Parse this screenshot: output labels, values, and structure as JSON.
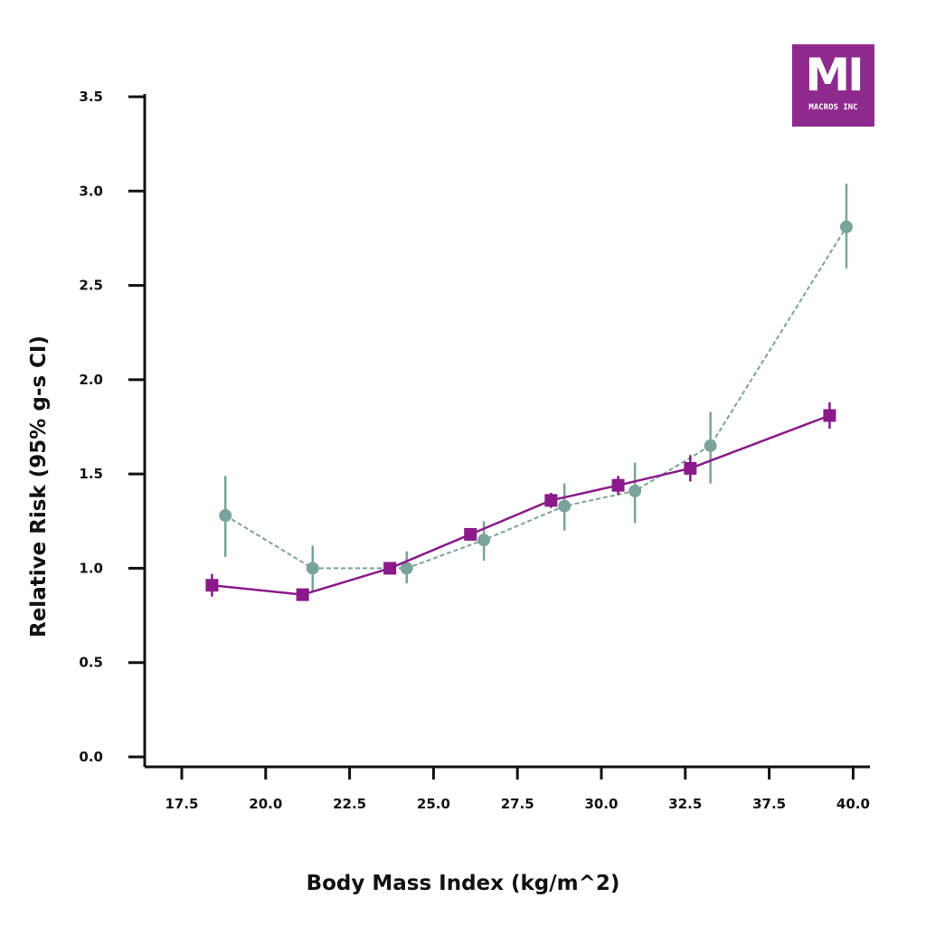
{
  "logo": {
    "mark": "MI",
    "name": "MACROS INC",
    "color": "#8e2a8e"
  },
  "chart_data": {
    "type": "line",
    "xlabel": "Body Mass Index (kg/m^2)",
    "ylabel": "Relative Risk (95% g-s CI)",
    "ylim": [
      0,
      3.5
    ],
    "y_ticks": [
      "0.0",
      "0.5",
      "1.0",
      "1.5",
      "2.0",
      "2.5",
      "3.0",
      "3.5"
    ],
    "x_ticks": [
      "17.5",
      "20.0",
      "22.5",
      "25.0",
      "27.5",
      "30.0",
      "32.5",
      "37.5",
      "40.0"
    ],
    "grid": false,
    "legend": "none",
    "series": [
      {
        "marker": "square",
        "line": "solid",
        "color": "#8a1a8a",
        "points": [
          {
            "x": 18.4,
            "y": 0.91,
            "lo": 0.85,
            "hi": 0.97
          },
          {
            "x": 21.1,
            "y": 0.86,
            "lo": 0.86,
            "hi": 0.86
          },
          {
            "x": 23.7,
            "y": 1.0,
            "lo": 1.0,
            "hi": 1.0
          },
          {
            "x": 26.1,
            "y": 1.18,
            "lo": 1.15,
            "hi": 1.21
          },
          {
            "x": 28.5,
            "y": 1.36,
            "lo": 1.32,
            "hi": 1.4
          },
          {
            "x": 30.5,
            "y": 1.44,
            "lo": 1.39,
            "hi": 1.49
          },
          {
            "x": 32.8,
            "y": 1.53,
            "lo": 1.46,
            "hi": 1.6
          },
          {
            "x": 39.3,
            "y": 1.81,
            "lo": 1.74,
            "hi": 1.88
          }
        ]
      },
      {
        "marker": "circle",
        "line": "dashed",
        "color": "#7aa39b",
        "points": [
          {
            "x": 18.8,
            "y": 1.28,
            "lo": 1.06,
            "hi": 1.49
          },
          {
            "x": 21.4,
            "y": 1.0,
            "lo": 0.88,
            "hi": 1.12
          },
          {
            "x": 24.2,
            "y": 1.0,
            "lo": 0.92,
            "hi": 1.09
          },
          {
            "x": 26.5,
            "y": 1.15,
            "lo": 1.04,
            "hi": 1.25
          },
          {
            "x": 28.9,
            "y": 1.33,
            "lo": 1.2,
            "hi": 1.45
          },
          {
            "x": 31.0,
            "y": 1.41,
            "lo": 1.24,
            "hi": 1.56
          },
          {
            "x": 34.0,
            "y": 1.65,
            "lo": 1.45,
            "hi": 1.83
          },
          {
            "x": 39.8,
            "y": 2.81,
            "lo": 2.59,
            "hi": 3.04
          }
        ]
      }
    ]
  }
}
